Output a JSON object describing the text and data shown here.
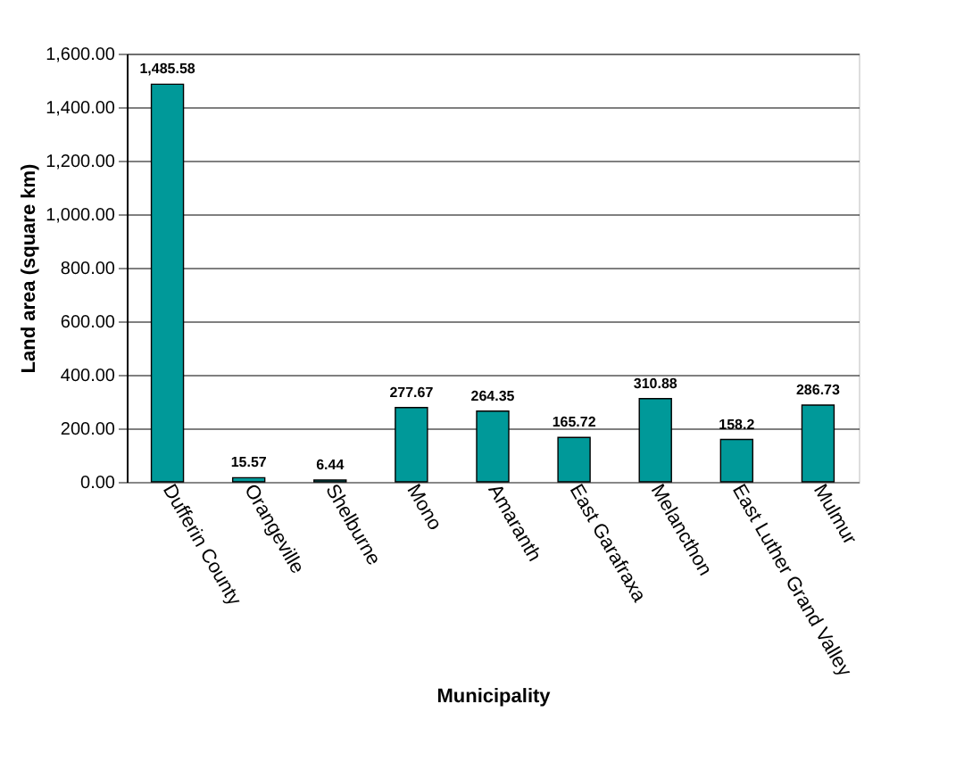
{
  "chart_data": {
    "type": "bar",
    "xlabel": "Municipality",
    "ylabel": "Land area (square km)",
    "categories": [
      "Dufferin County",
      "Orangeville",
      "Shelburne",
      "Mono",
      "Amaranth",
      "East Garafraxa",
      "Melancthon",
      "East Luther Grand Valley",
      "Mulmur"
    ],
    "values": [
      1485.58,
      15.57,
      6.44,
      277.67,
      264.35,
      165.72,
      310.88,
      158.2,
      286.73
    ],
    "value_labels": [
      "1,485.58",
      "15.57",
      "6.44",
      "277.67",
      "264.35",
      "165.72",
      "310.88",
      "158.2",
      "286.73"
    ],
    "color": "#009999",
    "ylim": [
      0,
      1600
    ],
    "yticks": [
      {
        "value": 0,
        "label": "0.00"
      },
      {
        "value": 200,
        "label": "200.00"
      },
      {
        "value": 400,
        "label": "400.00"
      },
      {
        "value": 600,
        "label": "600.00"
      },
      {
        "value": 800,
        "label": "800.00"
      },
      {
        "value": 1000,
        "label": "1,000.00"
      },
      {
        "value": 1200,
        "label": "1,200.00"
      },
      {
        "value": 1400,
        "label": "1,400.00"
      },
      {
        "value": 1600,
        "label": "1,600.00"
      }
    ],
    "grid": "y"
  }
}
